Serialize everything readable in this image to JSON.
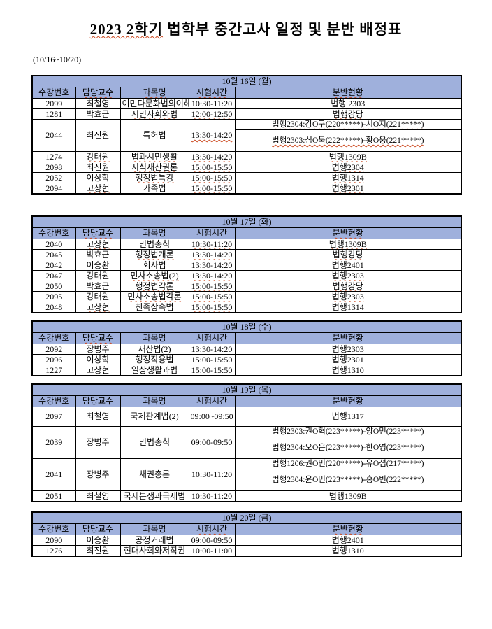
{
  "title": {
    "highlight": "2023 2학기",
    "rest": " 법학부 중간고사 일정 및 분반 배정표"
  },
  "subtitle": "(10/16~10/20)",
  "columns": [
    "수강번호",
    "담당교수",
    "과목명",
    "시험시간",
    "분반현황"
  ],
  "colors": {
    "header_bg": "#9fb0dc",
    "border": "#000000",
    "squiggle": "#cc4a21"
  },
  "tables": [
    {
      "day": "10월 16일 (월)",
      "header_sq": [
        1,
        2,
        3,
        4
      ],
      "rows": [
        {
          "cells": [
            "2099",
            "최철영",
            "이민다문화법의이해",
            "10:30-11:20"
          ],
          "rooms": [
            "법행 2303"
          ],
          "sq": [
            2,
            3,
            4
          ]
        },
        {
          "cells": [
            "1281",
            "박효근",
            "시민사회와법",
            "12:00-12:50"
          ],
          "rooms": [
            "법행강당"
          ],
          "sq": [
            2,
            3,
            4
          ]
        },
        {
          "cells": [
            "2044",
            "최진원",
            "특허법",
            "13:30-14:20"
          ],
          "rooms": [
            "법행2304:강O구(220*****)-시O지(221*****)",
            "법행2303:심O묵(222*****)-황O웅(221*****)"
          ],
          "sq": [
            3,
            4
          ]
        },
        {
          "cells": [
            "1274",
            "강태원",
            "법과시민생활",
            "13:30-14:20"
          ],
          "rooms": [
            "법행1309B"
          ],
          "sq": [
            1,
            2,
            3,
            4
          ]
        },
        {
          "cells": [
            "2098",
            "최진원",
            "지식재산권론",
            "15:00-15:50"
          ],
          "rooms": [
            "법행2304"
          ],
          "sq": [
            2,
            3,
            4
          ]
        },
        {
          "cells": [
            "2052",
            "이상학",
            "행정법특강",
            "15:00-15:50"
          ],
          "rooms": [
            "법행1314"
          ],
          "sq": [
            2,
            3,
            4
          ]
        },
        {
          "cells": [
            "2094",
            "고상현",
            "가족법",
            "15:00-15:50"
          ],
          "rooms": [
            "법행2301"
          ],
          "sq": [
            1,
            3,
            4
          ]
        }
      ]
    },
    {
      "day": "10월 17일 (화)",
      "header_sq": [
        1,
        4
      ],
      "rows": [
        {
          "cells": [
            "2040",
            "고상현",
            "민법총칙",
            "10:30-11:20"
          ],
          "rooms": [
            "법행1309B"
          ],
          "sq": [
            1,
            3,
            4
          ]
        },
        {
          "cells": [
            "2045",
            "박효근",
            "행정법개론",
            "13:30-14:20"
          ],
          "rooms": [
            "법행강당"
          ],
          "sq": [
            2,
            3,
            4
          ]
        },
        {
          "cells": [
            "2042",
            "이승환",
            "회사법",
            "13:30-14:20"
          ],
          "rooms": [
            "법행2401"
          ],
          "sq": []
        },
        {
          "cells": [
            "2047",
            "강태원",
            "민사소송법(2)",
            "13:30-14:20"
          ],
          "rooms": [
            "법행2303"
          ],
          "sq": [
            2,
            3,
            4
          ]
        },
        {
          "cells": [
            "2050",
            "박효근",
            "행정법각론",
            "15:00-15:50"
          ],
          "rooms": [
            "법행강당"
          ],
          "sq": [
            2,
            3,
            4
          ]
        },
        {
          "cells": [
            "2095",
            "강태원",
            "민사소송법각론",
            "15:00-15:50"
          ],
          "rooms": [
            "법행2303"
          ],
          "sq": [
            2,
            3,
            4
          ]
        },
        {
          "cells": [
            "2048",
            "고상현",
            "친족상속법",
            "15:00-15:50"
          ],
          "rooms": [
            "법행1314"
          ],
          "sq": [
            1,
            3
          ]
        }
      ]
    },
    {
      "day": "10월 18일 (수)",
      "header_sq": [
        1
      ],
      "rows": [
        {
          "cells": [
            "2092",
            "장병주",
            "재산법(2)",
            "13:30-14:20"
          ],
          "rooms": [
            "법행2303"
          ],
          "sq": []
        },
        {
          "cells": [
            "2096",
            "이상학",
            "행정작용법",
            "15:00-15:50"
          ],
          "rooms": [
            "법행2301"
          ],
          "sq": []
        },
        {
          "cells": [
            "1227",
            "고상현",
            "일상생활과법",
            "15:00-15:50"
          ],
          "rooms": [
            "법행1310"
          ],
          "sq": []
        }
      ]
    },
    {
      "day": "10월 19일 (목)",
      "header_sq": [],
      "rows": [
        {
          "cells": [
            "2097",
            "최철영",
            "국제관계법(2)",
            "09:00~09:50"
          ],
          "rooms": [
            "법행1317"
          ],
          "sq": [],
          "med": true
        },
        {
          "cells": [
            "2039",
            "장병주",
            "민법총칙",
            "09:00-09:50"
          ],
          "rooms": [
            "법행2303:권O혁(223*****)-양O민(223*****)",
            "법행2304:오O은(223*****)-한O영(223*****)"
          ],
          "sq": []
        },
        {
          "cells": [
            "2041",
            "장병주",
            "채권총론",
            "10:30-11:20"
          ],
          "rooms": [
            "법행1206:권O민(220*****)-유O섭(217*****)",
            "법행2304:윤O민(223*****)-홍O빈(222*****)"
          ],
          "sq": []
        },
        {
          "cells": [
            "2051",
            "최철영",
            "국제분쟁과국제법",
            "10:30-11:20"
          ],
          "rooms": [
            "법행1309B"
          ],
          "sq": []
        }
      ]
    },
    {
      "day": "10월 20일 (금)",
      "header_sq": [
        3,
        4
      ],
      "rows": [
        {
          "cells": [
            "2090",
            "이승환",
            "공정거래법",
            "09:00-09:50"
          ],
          "rooms": [
            "법행2401"
          ],
          "sq": []
        },
        {
          "cells": [
            "1276",
            "최진원",
            "현대사회와저작권",
            "10:00-11:00"
          ],
          "rooms": [
            "법행1310"
          ],
          "sq": []
        }
      ]
    }
  ]
}
